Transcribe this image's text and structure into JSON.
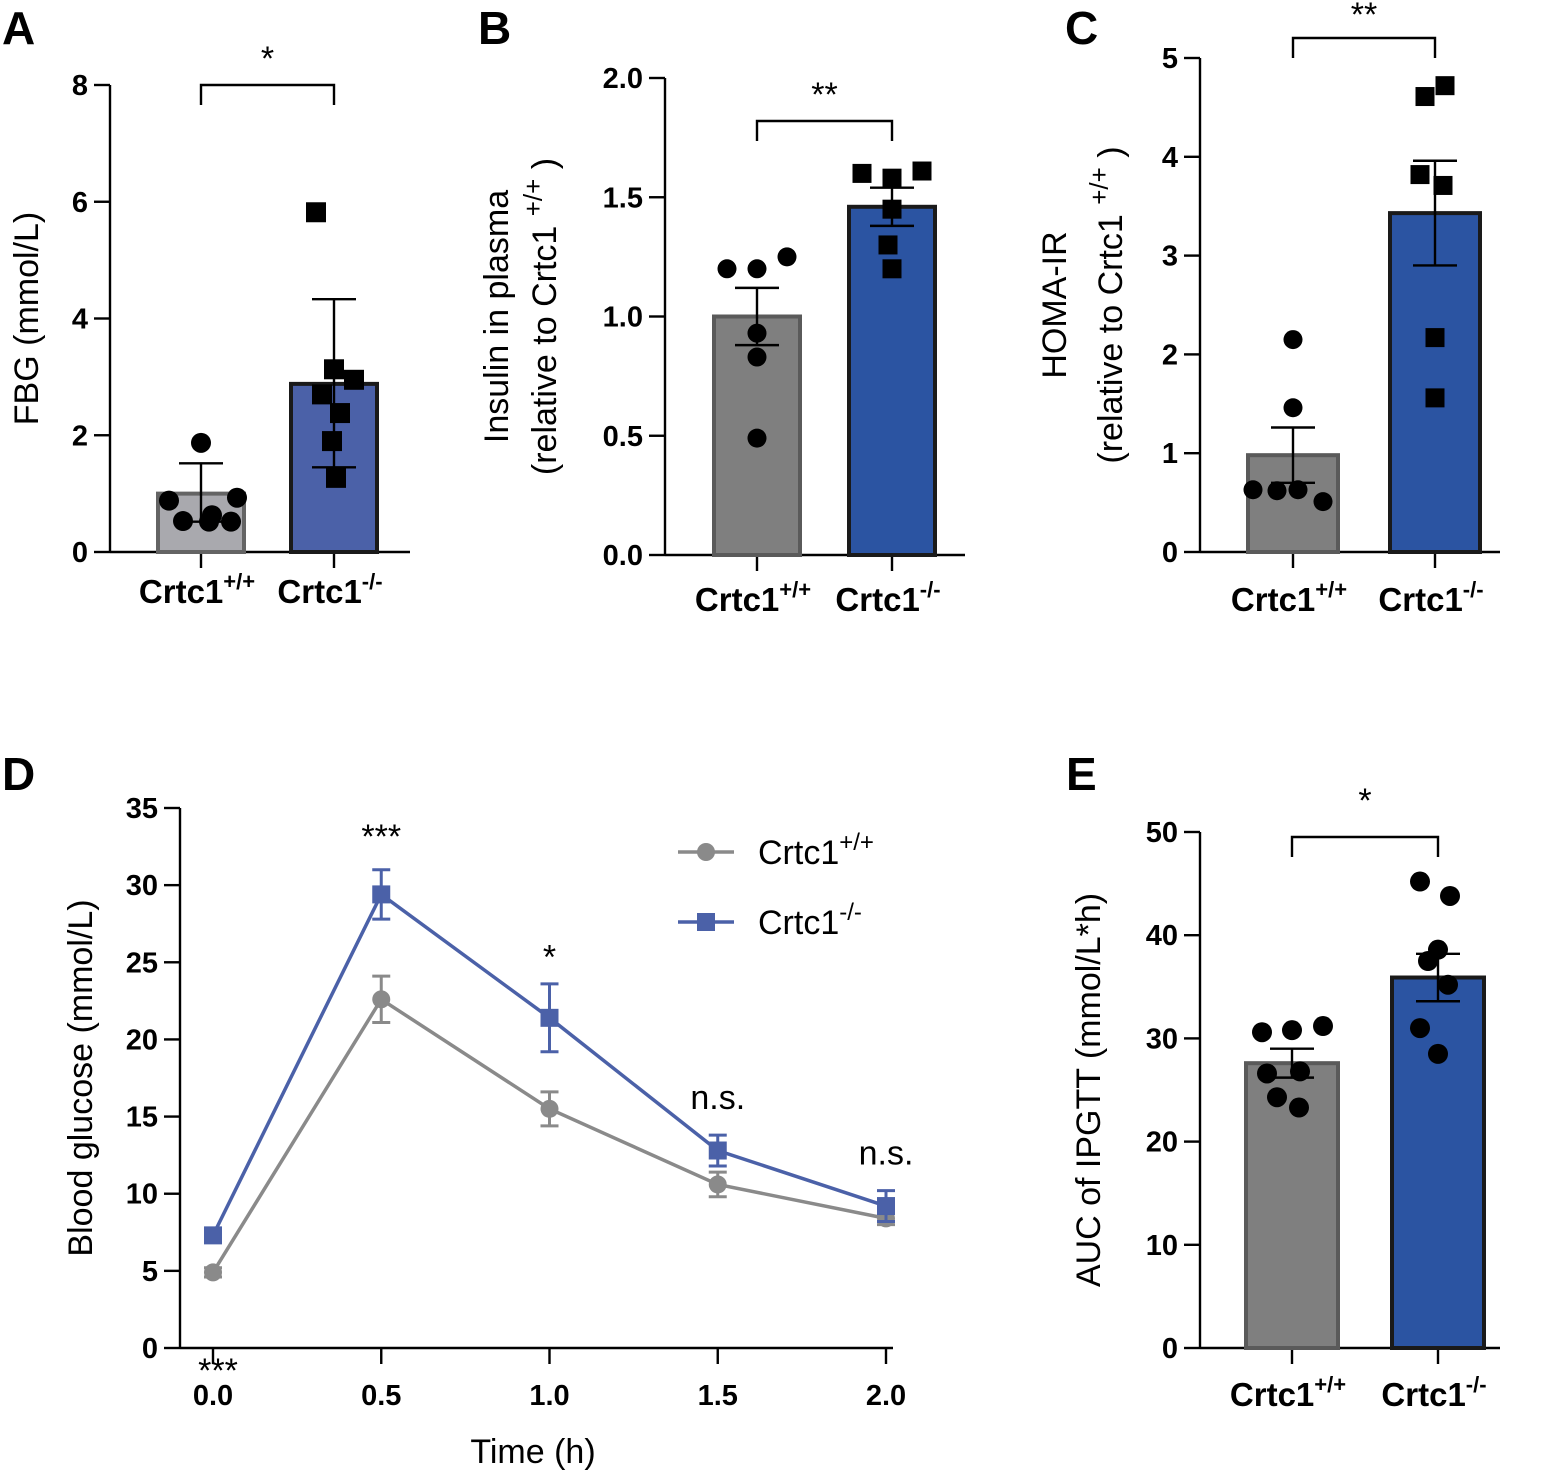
{
  "chart_data": [
    {
      "id": "A",
      "type": "bar",
      "panel_label": "A",
      "ylabel": "FBG (mmol/L)",
      "ylabel2": "",
      "ylabel_sup": "",
      "ylim": [
        0,
        8
      ],
      "yticks": [
        0,
        2,
        4,
        6,
        8
      ],
      "yticklabels": [
        "0",
        "2",
        "4",
        "6",
        "8"
      ],
      "categories": [
        {
          "base": "Crtc1",
          "sup": "+/+"
        },
        {
          "base": "Crtc1",
          "sup": "-/-"
        }
      ],
      "bars": [
        {
          "mean": 1.0,
          "err_low": 0.52,
          "err_high": 1.52,
          "fill": "#a9a9ae",
          "stroke": "#646464",
          "marker": "circle",
          "points": [
            1.87,
            0.88,
            0.63,
            0.93,
            0.53,
            0.52,
            0.52
          ]
        },
        {
          "mean": 2.88,
          "err_low": 1.45,
          "err_high": 4.33,
          "fill": "#4b61a8",
          "stroke": "#1a1a1a",
          "marker": "square",
          "points": [
            5.82,
            3.13,
            2.95,
            2.7,
            2.38,
            1.9,
            1.27
          ]
        }
      ],
      "significance": "*"
    },
    {
      "id": "B",
      "type": "bar",
      "panel_label": "B",
      "ylabel": "Insulin in plasma",
      "ylabel2": "(relative to Crtc1 ",
      "ylabel_sup": "+/+",
      "ylabel2_end": ")",
      "ylim": [
        0,
        2
      ],
      "yticks": [
        0,
        0.5,
        1,
        1.5,
        2
      ],
      "yticklabels": [
        "0.0",
        "0.5",
        "1.0",
        "1.5",
        "2.0"
      ],
      "categories": [
        {
          "base": "Crtc1",
          "sup": "+/+"
        },
        {
          "base": "Crtc1",
          "sup": "-/-"
        }
      ],
      "bars": [
        {
          "mean": 1.0,
          "err_low": 0.88,
          "err_high": 1.12,
          "fill": "#7f7f7f",
          "stroke": "#5a5a5a",
          "marker": "circle",
          "points": [
            1.2,
            1.2,
            1.25,
            0.93,
            0.83,
            0.49
          ]
        },
        {
          "mean": 1.46,
          "err_low": 1.38,
          "err_high": 1.54,
          "fill": "#2b54a2",
          "stroke": "#1a1a1a",
          "marker": "square",
          "points": [
            1.6,
            1.58,
            1.61,
            1.45,
            1.3,
            1.2
          ]
        }
      ],
      "significance": "**"
    },
    {
      "id": "C",
      "type": "bar",
      "panel_label": "C",
      "ylabel": "HOMA-IR",
      "ylabel2": "(relative to Crtc1 ",
      "ylabel_sup": "+/+",
      "ylabel2_end": ")",
      "ylim": [
        0,
        5
      ],
      "yticks": [
        0,
        1,
        2,
        3,
        4,
        5
      ],
      "yticklabels": [
        "0",
        "1",
        "2",
        "3",
        "4",
        "5"
      ],
      "categories": [
        {
          "base": "Crtc1",
          "sup": "+/+"
        },
        {
          "base": "Crtc1",
          "sup": "-/-"
        }
      ],
      "bars": [
        {
          "mean": 0.98,
          "err_low": 0.7,
          "err_high": 1.26,
          "fill": "#7f7f7f",
          "stroke": "#5a5a5a",
          "marker": "circle",
          "points": [
            2.15,
            1.46,
            0.63,
            0.62,
            0.63,
            0.51
          ]
        },
        {
          "mean": 3.43,
          "err_low": 2.9,
          "err_high": 3.96,
          "fill": "#2b54a2",
          "stroke": "#1a1a1a",
          "marker": "square",
          "points": [
            4.61,
            4.72,
            3.82,
            3.71,
            2.17,
            1.56
          ]
        }
      ],
      "significance": "**"
    },
    {
      "id": "D",
      "type": "line",
      "panel_label": "D",
      "xlabel": "Time (h)",
      "ylabel": "Blood glucose (mmol/L)",
      "xlim": [
        0,
        2
      ],
      "ylim": [
        0,
        35
      ],
      "xticks": [
        0,
        0.5,
        1,
        1.5,
        2
      ],
      "xticklabels": [
        "0.0",
        "0.5",
        "1.0",
        "1.5",
        "2.0"
      ],
      "yticks": [
        0,
        5,
        10,
        15,
        20,
        25,
        30,
        35
      ],
      "yticklabels": [
        "0",
        "5",
        "10",
        "15",
        "20",
        "25",
        "30",
        "35"
      ],
      "series": [
        {
          "name": "Crtc1",
          "sup": "+/+",
          "color": "#8a8a8a",
          "marker": "circle",
          "x": [
            0,
            0.5,
            1,
            1.5,
            2
          ],
          "y": [
            4.9,
            22.6,
            15.5,
            10.6,
            8.4
          ],
          "err": [
            0.3,
            1.5,
            1.1,
            0.8,
            0.4
          ]
        },
        {
          "name": "Crtc1",
          "sup": "-/-",
          "color": "#4b61a8",
          "marker": "square",
          "x": [
            0,
            0.5,
            1,
            1.5,
            2
          ],
          "y": [
            7.3,
            29.4,
            21.4,
            12.8,
            9.2
          ],
          "err": [
            0.3,
            1.6,
            2.2,
            1.0,
            1.0
          ]
        }
      ],
      "annotations": [
        {
          "text": "***",
          "x": 0,
          "y": -2.2
        },
        {
          "text": "***",
          "x": 0.5,
          "y": 32.4
        },
        {
          "text": "*",
          "x": 1,
          "y": 24.6
        },
        {
          "text": "n.s.",
          "x": 1.5,
          "y": 15.5
        },
        {
          "text": "n.s.",
          "x": 2,
          "y": 11.9
        }
      ],
      "legend_position": "top-right"
    },
    {
      "id": "E",
      "type": "bar",
      "panel_label": "E",
      "ylabel": "AUC of IPGTT (mmol/L*h)",
      "ylabel2": "",
      "ylabel_sup": "",
      "ylim": [
        0,
        50
      ],
      "yticks": [
        0,
        10,
        20,
        30,
        40,
        50
      ],
      "yticklabels": [
        "0",
        "10",
        "20",
        "30",
        "40",
        "50"
      ],
      "categories": [
        {
          "base": "Crtc1",
          "sup": "+/+"
        },
        {
          "base": "Crtc1",
          "sup": "-/-"
        }
      ],
      "bars": [
        {
          "mean": 27.6,
          "err_low": 26.2,
          "err_high": 29.0,
          "fill": "#7f7f7f",
          "stroke": "#5a5a5a",
          "marker": "circle",
          "points": [
            30.6,
            30.8,
            31.2,
            26.6,
            26.8,
            24.3,
            23.3
          ]
        },
        {
          "mean": 35.9,
          "err_low": 33.6,
          "err_high": 38.2,
          "fill": "#2b54a2",
          "stroke": "#1a1a1a",
          "marker": "circle",
          "points": [
            45.2,
            43.8,
            38.6,
            37.5,
            35.2,
            31.0,
            28.5
          ]
        }
      ],
      "significance": "*"
    }
  ]
}
